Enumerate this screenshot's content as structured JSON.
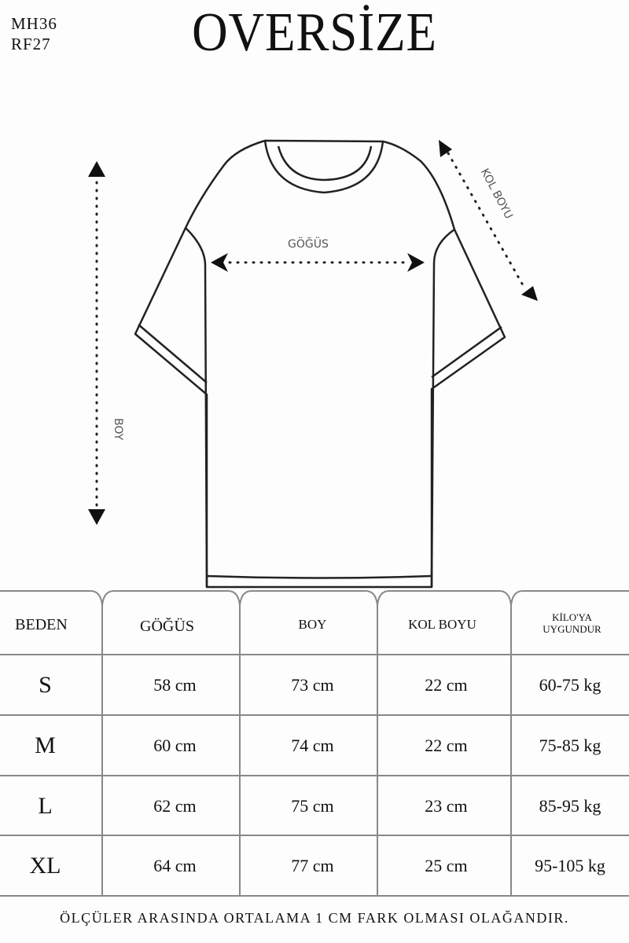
{
  "codes": [
    "MH36",
    "RF27"
  ],
  "title": "OVERSİZE",
  "diagram": {
    "chest_label": "GÖĞÜS",
    "length_label": "BOY",
    "sleeve_label": "KOL BOYU"
  },
  "table": {
    "headers": [
      "BEDEN",
      "GÖĞÜS",
      "BOY",
      "KOL BOYU",
      "KİLO'YA UYGUNDUR"
    ],
    "rows": [
      [
        "S",
        "58 cm",
        "73 cm",
        "22  cm",
        "60-75 kg"
      ],
      [
        "M",
        "60 cm",
        "74 cm",
        "22 cm",
        "75-85 kg"
      ],
      [
        "L",
        "62 cm",
        "75 cm",
        "23 cm",
        "85-95 kg"
      ],
      [
        "XL",
        "64 cm",
        "77 cm",
        "25 cm",
        "95-105 kg"
      ]
    ]
  },
  "footer": "ÖLÇÜLER ARASINDA ORTALAMA 1 CM FARK OLMASI OLAĞANDIR."
}
